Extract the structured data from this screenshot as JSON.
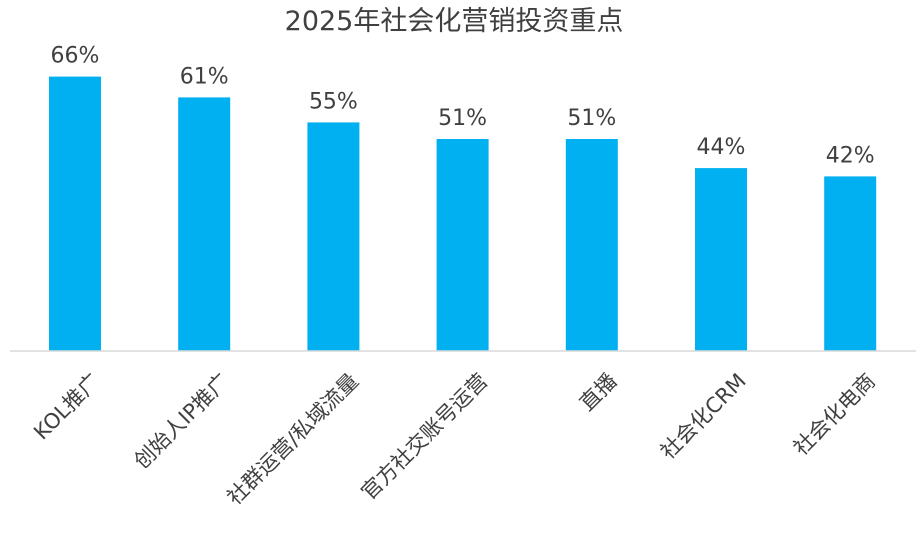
{
  "chart_data": {
    "type": "bar",
    "title": "2025年社会化营销投资重点",
    "xlabel": "",
    "ylabel": "",
    "categories": [
      "KOL推广",
      "创始人IP推广",
      "社群运营/私域流量",
      "官方社交账号运营",
      "直播",
      "社会化CRM",
      "社会化电商"
    ],
    "values": [
      66,
      61,
      55,
      51,
      51,
      44,
      42
    ],
    "data_labels": [
      "66%",
      "61%",
      "55%",
      "51%",
      "51%",
      "44%",
      "42%"
    ],
    "ylim": [
      0,
      70
    ],
    "grid": false,
    "legend": "none",
    "bar_color": "#00B0F0",
    "axis_color": "#D9D9D9",
    "text_color": "#404040"
  }
}
